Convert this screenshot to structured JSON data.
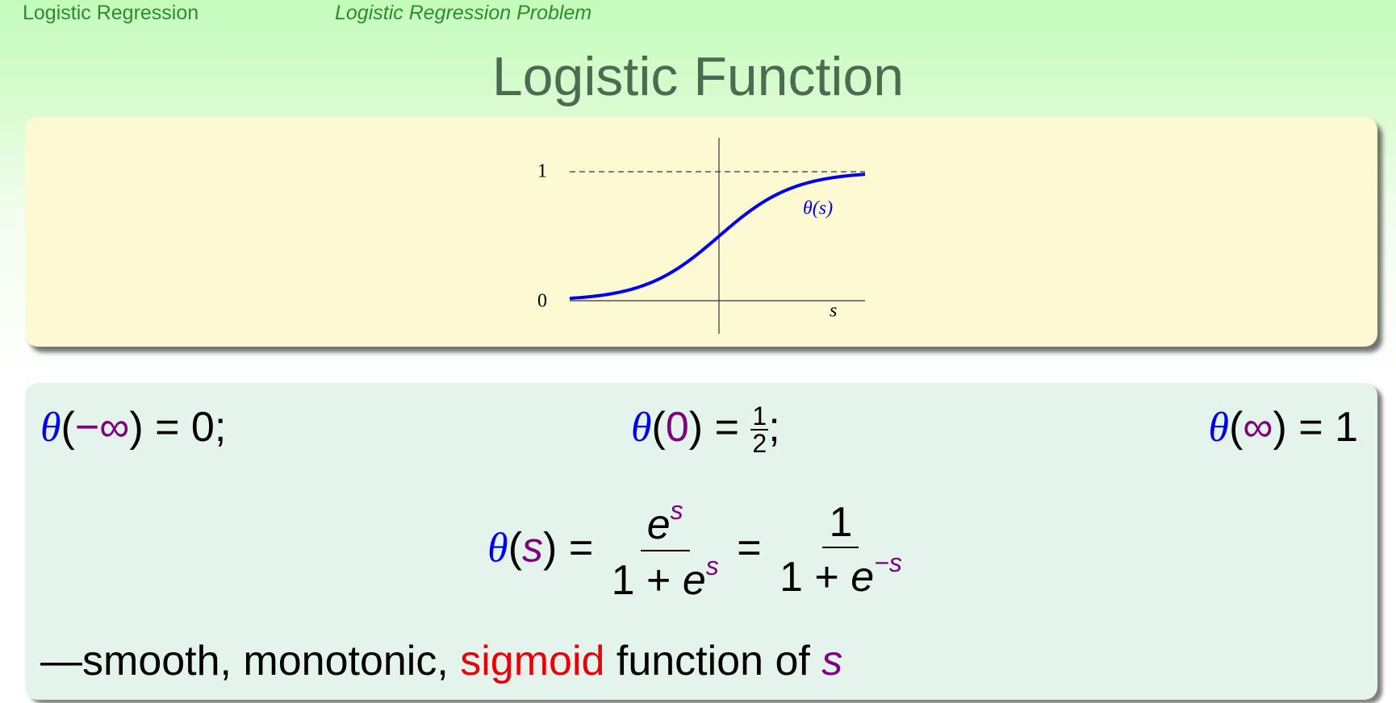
{
  "header": {
    "section": "Logistic Regression",
    "subsection": "Logistic Regression Problem"
  },
  "title": "Logistic Function",
  "plot": {
    "y_labels": [
      "1",
      "0"
    ],
    "curve_label": "θ(s)",
    "x_label": "s"
  },
  "limits": [
    [
      "θ",
      "(",
      "−∞",
      ")",
      " = 0;"
    ],
    [
      "θ",
      "(",
      "0",
      ")",
      " = ",
      "1",
      "2",
      ";"
    ],
    [
      "θ",
      "(",
      "∞",
      ")",
      " = 1"
    ]
  ],
  "formula": {
    "lhs": [
      "θ",
      "(",
      "s",
      ")",
      " = "
    ],
    "frac1": {
      "num": [
        "e",
        "s"
      ],
      "den": [
        "1 + ",
        "e",
        "s"
      ]
    },
    "eq": " = ",
    "frac2": {
      "num": "1",
      "den": [
        "1 + ",
        "e",
        "−s"
      ]
    }
  },
  "caption": [
    "—smooth, monotonic, ",
    "sigmoid",
    " function of ",
    "s"
  ]
}
